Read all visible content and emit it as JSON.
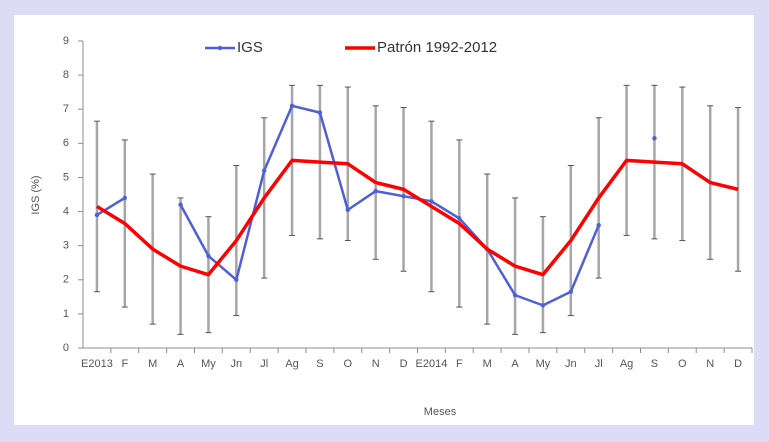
{
  "chart_data": {
    "type": "line",
    "x_label": "Meses",
    "y_label": "IGS (%)",
    "categories": [
      "E2013",
      "F",
      "M",
      "A",
      "My",
      "Jn",
      "Jl",
      "Ag",
      "S",
      "O",
      "N",
      "D",
      "E2014",
      "F",
      "M",
      "A",
      "My",
      "Jn",
      "Jl",
      "Ag",
      "S",
      "O",
      "N",
      "D"
    ],
    "series": [
      {
        "name": "IGS",
        "color": "#4f5fd9",
        "markers": true,
        "values": [
          3.9,
          4.4,
          null,
          4.2,
          2.7,
          2.0,
          5.2,
          7.1,
          6.9,
          4.05,
          4.6,
          4.45,
          4.3,
          3.8,
          2.9,
          1.55,
          1.25,
          1.65,
          3.6,
          null,
          6.15,
          null,
          null,
          null
        ]
      },
      {
        "name": "Patrón 1992-2012",
        "color": "#ff0000",
        "markers": false,
        "values": [
          4.15,
          3.65,
          2.9,
          2.4,
          2.15,
          3.15,
          4.4,
          5.5,
          5.45,
          5.4,
          4.85,
          4.65,
          4.15,
          3.65,
          2.9,
          2.4,
          2.15,
          3.15,
          4.4,
          5.5,
          5.45,
          5.4,
          4.85,
          4.65
        ],
        "errors": [
          2.5,
          2.45,
          2.2,
          2.0,
          1.7,
          2.2,
          2.35,
          2.2,
          2.25,
          2.25,
          2.25,
          2.4,
          2.5,
          2.45,
          2.2,
          2.0,
          1.7,
          2.2,
          2.35,
          2.2,
          2.25,
          2.25,
          2.25,
          2.4
        ],
        "error_color": "#a6a6a6"
      }
    ],
    "ylim": [
      0,
      9
    ],
    "yticks": [
      0,
      1,
      2,
      3,
      4,
      5,
      6,
      7,
      8,
      9
    ],
    "grid": false,
    "legend": "top"
  }
}
